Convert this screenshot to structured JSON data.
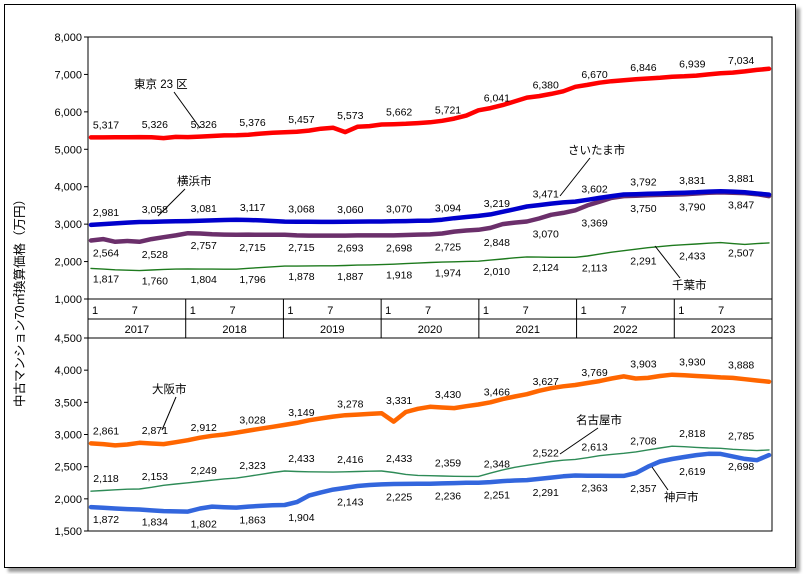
{
  "chart_data": [
    {
      "type": "line",
      "ylabel": "中古マンション70㎡換算価格（万円）",
      "ylim": [
        1000,
        8000
      ],
      "yticks": [
        "1,000",
        "2,000",
        "3,000",
        "4,000",
        "5,000",
        "6,000",
        "7,000",
        "8,000"
      ],
      "x_ticks": [
        "1",
        "7",
        "1",
        "7",
        "1",
        "7",
        "1",
        "7",
        "1",
        "7",
        "1",
        "7",
        "1",
        "7"
      ],
      "years": [
        "2017",
        "2018",
        "2019",
        "2020",
        "2021",
        "2022",
        "2023"
      ],
      "series": [
        {
          "name": "東京 23 区",
          "color": "#ff0000",
          "values": [
            5317,
            5317,
            5320,
            5322,
            5326,
            5320,
            5300,
            5330,
            5326,
            5340,
            5355,
            5370,
            5376,
            5390,
            5420,
            5440,
            5457,
            5470,
            5500,
            5550,
            5573,
            5460,
            5600,
            5620,
            5662,
            5670,
            5680,
            5700,
            5721,
            5760,
            5820,
            5900,
            6041,
            6100,
            6180,
            6280,
            6380,
            6420,
            6480,
            6550,
            6670,
            6720,
            6780,
            6820,
            6846,
            6870,
            6890,
            6910,
            6939,
            6950,
            6970,
            7000,
            7034,
            7050,
            7080,
            7120,
            7150
          ],
          "labels": [
            "5,317",
            "5,326",
            "5,326",
            "5,376",
            "5,457",
            "5,573",
            "5,662",
            "5,721",
            "6,041",
            "6,380",
            "6,670",
            "6,846",
            "6,939",
            "7,034"
          ]
        },
        {
          "name": "さいたま市",
          "color": "#6b2f6b",
          "values": [
            2564,
            2600,
            2528,
            2550,
            2528,
            2600,
            2650,
            2700,
            2757,
            2750,
            2730,
            2720,
            2715,
            2720,
            2715,
            2715,
            2715,
            2700,
            2695,
            2693,
            2693,
            2695,
            2698,
            2698,
            2698,
            2700,
            2710,
            2720,
            2725,
            2750,
            2800,
            2830,
            2848,
            2900,
            3000,
            3040,
            3070,
            3150,
            3250,
            3300,
            3369,
            3500,
            3600,
            3700,
            3750,
            3760,
            3770,
            3780,
            3790,
            3800,
            3820,
            3840,
            3847,
            3840,
            3830,
            3800,
            3750
          ],
          "labels": [
            "2,564",
            "2,528",
            "2,757",
            "2,715",
            "2,715",
            "2,693",
            "2,698",
            "2,725",
            "2,848",
            "3,070",
            "3,369",
            "3,750",
            "3,790",
            "3,847"
          ]
        },
        {
          "name": "横浜市",
          "color": "#0000cc",
          "values": [
            2981,
            3000,
            3020,
            3040,
            3058,
            3060,
            3070,
            3075,
            3081,
            3090,
            3100,
            3110,
            3117,
            3110,
            3100,
            3085,
            3068,
            3065,
            3062,
            3060,
            3060,
            3065,
            3068,
            3070,
            3070,
            3075,
            3080,
            3088,
            3094,
            3120,
            3160,
            3190,
            3219,
            3260,
            3330,
            3400,
            3471,
            3510,
            3550,
            3580,
            3602,
            3650,
            3700,
            3750,
            3792,
            3800,
            3810,
            3820,
            3831,
            3840,
            3850,
            3870,
            3881,
            3870,
            3850,
            3820,
            3790
          ],
          "labels": [
            "2,981",
            "3,058",
            "3,081",
            "3,117",
            "3,068",
            "3,060",
            "3,070",
            "3,094",
            "3,219",
            "3,471",
            "3,602",
            "3,792",
            "3,831",
            "3,881"
          ]
        },
        {
          "name": "千葉市",
          "color": "#1e7a1e",
          "values": [
            1817,
            1800,
            1780,
            1770,
            1760,
            1775,
            1790,
            1800,
            1804,
            1800,
            1798,
            1797,
            1796,
            1820,
            1840,
            1860,
            1878,
            1880,
            1884,
            1886,
            1887,
            1895,
            1905,
            1912,
            1918,
            1930,
            1945,
            1960,
            1974,
            1985,
            1995,
            2005,
            2010,
            2040,
            2070,
            2100,
            2124,
            2120,
            2115,
            2113,
            2113,
            2150,
            2200,
            2250,
            2291,
            2330,
            2370,
            2400,
            2433,
            2450,
            2470,
            2490,
            2507,
            2480,
            2460,
            2480,
            2500
          ],
          "labels": [
            "1,817",
            "1,760",
            "1,804",
            "1,796",
            "1,878",
            "1,887",
            "1,918",
            "1,974",
            "2,010",
            "2,124",
            "2,113",
            "2,291",
            "2,433",
            "2,507"
          ]
        }
      ]
    },
    {
      "type": "line",
      "ylim": [
        1500,
        4500
      ],
      "yticks": [
        "1,500",
        "2,000",
        "2,500",
        "3,000",
        "3,500",
        "4,000",
        "4,500"
      ],
      "series": [
        {
          "name": "大阪市",
          "color": "#ff6600",
          "values": [
            2861,
            2850,
            2830,
            2845,
            2871,
            2860,
            2850,
            2880,
            2912,
            2950,
            2980,
            3000,
            3028,
            3060,
            3090,
            3120,
            3149,
            3180,
            3220,
            3250,
            3278,
            3300,
            3310,
            3320,
            3331,
            3200,
            3350,
            3400,
            3430,
            3420,
            3410,
            3440,
            3466,
            3500,
            3550,
            3590,
            3627,
            3680,
            3720,
            3750,
            3769,
            3800,
            3830,
            3870,
            3903,
            3870,
            3880,
            3910,
            3930,
            3920,
            3910,
            3900,
            3888,
            3880,
            3860,
            3840,
            3820
          ],
          "labels": [
            "2,861",
            "2,871",
            "2,912",
            "3,028",
            "3,149",
            "3,278",
            "3,331",
            "3,430",
            "3,466",
            "3,627",
            "3,769",
            "3,903",
            "3,930",
            "3,888"
          ]
        },
        {
          "name": "名古屋市",
          "color": "#2e8b57",
          "values": [
            2118,
            2130,
            2140,
            2150,
            2153,
            2180,
            2210,
            2230,
            2249,
            2270,
            2290,
            2310,
            2323,
            2350,
            2380,
            2410,
            2433,
            2425,
            2420,
            2418,
            2416,
            2420,
            2425,
            2430,
            2433,
            2410,
            2380,
            2365,
            2359,
            2355,
            2350,
            2348,
            2348,
            2400,
            2450,
            2490,
            2522,
            2550,
            2580,
            2600,
            2613,
            2640,
            2670,
            2690,
            2708,
            2730,
            2760,
            2790,
            2818,
            2810,
            2800,
            2790,
            2785,
            2770,
            2760,
            2750,
            2760
          ],
          "labels": [
            "2,118",
            "2,153",
            "2,249",
            "2,323",
            "2,433",
            "2,416",
            "2,433",
            "2,359",
            "2,348",
            "2,522",
            "2,613",
            "2,708",
            "2,818",
            "2,785"
          ]
        },
        {
          "name": "神戸市",
          "color": "#3366dd",
          "values": [
            1872,
            1860,
            1850,
            1840,
            1834,
            1820,
            1810,
            1805,
            1802,
            1850,
            1880,
            1870,
            1863,
            1880,
            1890,
            1900,
            1904,
            1950,
            2050,
            2100,
            2143,
            2170,
            2200,
            2215,
            2225,
            2230,
            2232,
            2235,
            2236,
            2240,
            2245,
            2250,
            2251,
            2260,
            2275,
            2285,
            2291,
            2310,
            2330,
            2350,
            2363,
            2360,
            2358,
            2357,
            2357,
            2400,
            2500,
            2580,
            2619,
            2650,
            2680,
            2700,
            2698,
            2660,
            2620,
            2600,
            2680
          ],
          "labels": [
            "1,872",
            "1,834",
            "1,802",
            "1,863",
            "1,904",
            "2,143",
            "2,225",
            "2,236",
            "2,251",
            "2,291",
            "2,363",
            "2,357",
            "2,619",
            "2,698"
          ]
        }
      ]
    }
  ]
}
